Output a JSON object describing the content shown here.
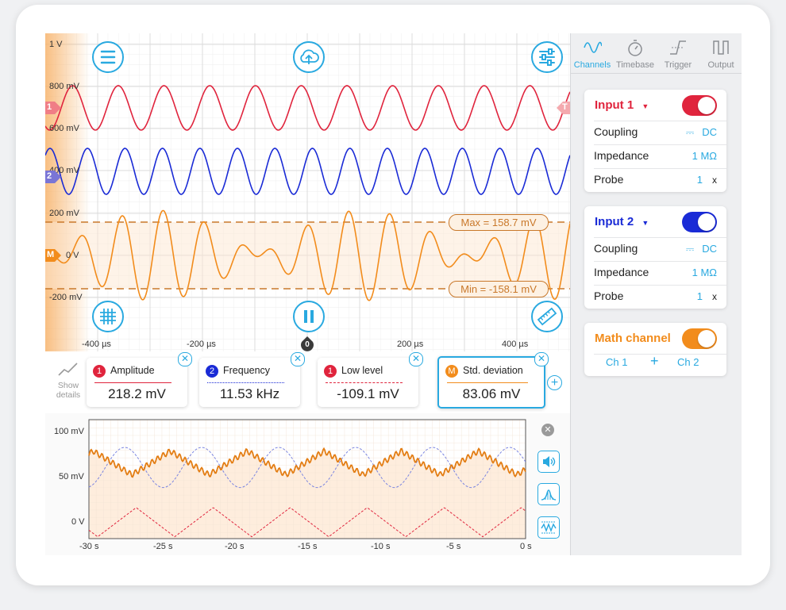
{
  "scope": {
    "y_ticks": [
      "1 V",
      "800 mV",
      "600 mV",
      "400 mV",
      "200 mV",
      "0 V",
      "-200 mV"
    ],
    "x_ticks": [
      "-400 µs",
      "-200 µs",
      "200 µs",
      "400 µs"
    ],
    "trigger_marker": "0",
    "ch1_marker": "1",
    "ch2_marker": "2",
    "math_marker": "M",
    "max_label": "Max = 158.7 mV",
    "min_label": "Min = -158.1 mV",
    "colors": {
      "ch1": "#e0243d",
      "ch2": "#1a2bd6",
      "math": "#f28c1c",
      "accent": "#29a9e0"
    }
  },
  "tabs": [
    {
      "label": "Channels",
      "icon": "sine-wave-icon"
    },
    {
      "label": "Timebase",
      "icon": "stopwatch-icon"
    },
    {
      "label": "Trigger",
      "icon": "trigger-edge-icon"
    },
    {
      "label": "Output",
      "icon": "pulse-output-icon"
    }
  ],
  "input1": {
    "title": "Input 1",
    "coupling_label": "Coupling",
    "coupling_value": "DC",
    "impedance_label": "Impedance",
    "impedance_value": "1 MΩ",
    "probe_label": "Probe",
    "probe_value": "1",
    "probe_unit": "x",
    "enabled": true
  },
  "input2": {
    "title": "Input 2",
    "coupling_label": "Coupling",
    "coupling_value": "DC",
    "impedance_label": "Impedance",
    "impedance_value": "1 MΩ",
    "probe_label": "Probe",
    "probe_value": "1",
    "probe_unit": "x",
    "enabled": true
  },
  "math": {
    "title": "Math channel",
    "left": "Ch 1",
    "op": "+",
    "right": "Ch 2",
    "enabled": true
  },
  "measurements": {
    "show_details": "Show details",
    "items": [
      {
        "badge": "1",
        "name": "Amplitude",
        "value": "218.2 mV",
        "color": "#e0243d"
      },
      {
        "badge": "2",
        "name": "Frequency",
        "value": "11.53 kHz",
        "color": "#1a2bd6"
      },
      {
        "badge": "1",
        "name": "Low level",
        "value": "-109.1 mV",
        "color": "#e0243d"
      },
      {
        "badge": "M",
        "name": "Std. deviation",
        "value": "83.06 mV",
        "color": "#f28c1c"
      }
    ]
  },
  "history": {
    "y_ticks": [
      "100 mV",
      "50 mV",
      "0 V"
    ],
    "x_ticks": [
      "-30 s",
      "-25 s",
      "-20 s",
      "-15 s",
      "-10 s",
      "-5 s",
      "0 s"
    ]
  }
}
